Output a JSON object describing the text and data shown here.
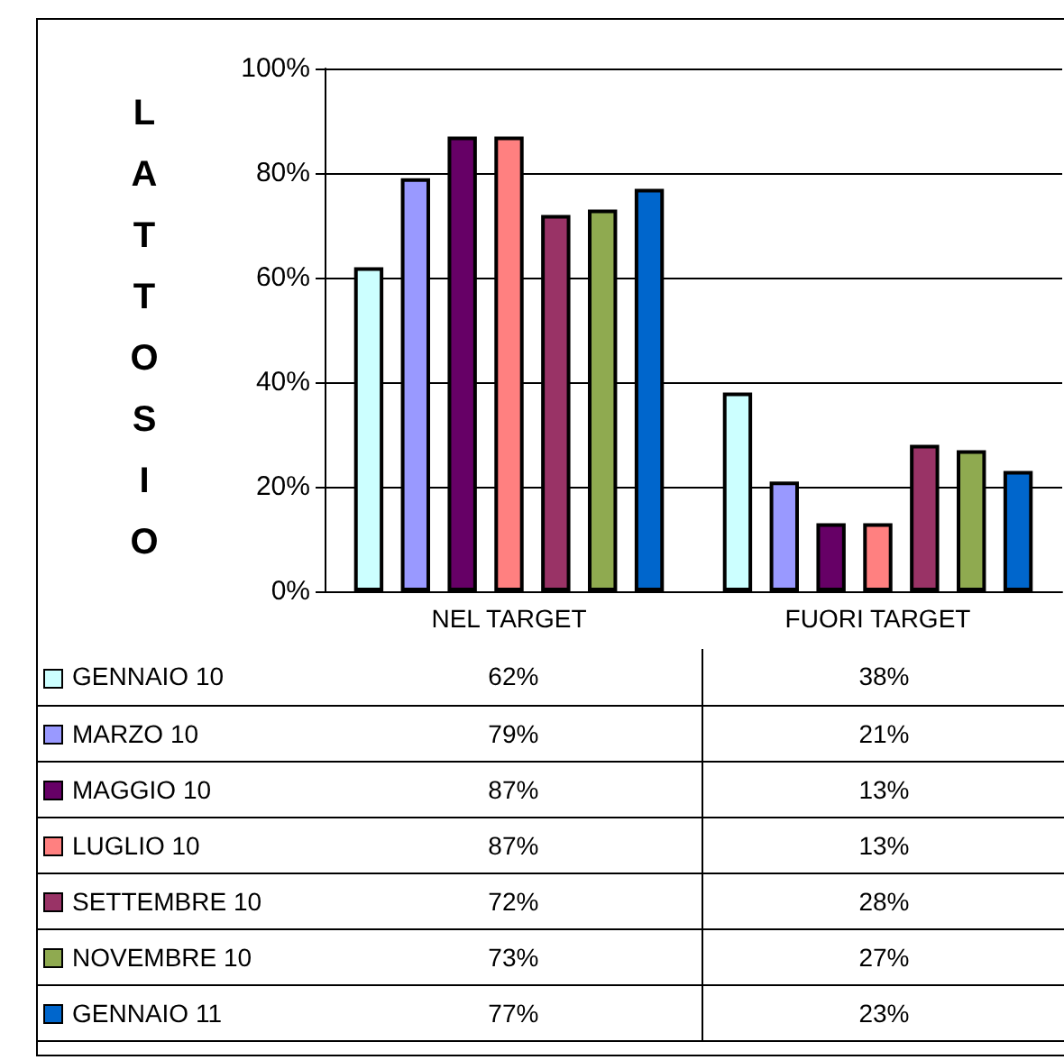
{
  "chart_data": {
    "type": "bar",
    "ylabel": "LATTOSIO",
    "categories": [
      "NEL TARGET",
      "FUORI TARGET"
    ],
    "series": [
      {
        "name": "GENNAIO 10",
        "color": "#ccffff",
        "values": [
          62,
          38
        ],
        "value_labels": [
          "62%",
          "38%"
        ]
      },
      {
        "name": "MARZO 10",
        "color": "#9999ff",
        "values": [
          79,
          21
        ],
        "value_labels": [
          "79%",
          "21%"
        ]
      },
      {
        "name": "MAGGIO 10",
        "color": "#660066",
        "values": [
          87,
          13
        ],
        "value_labels": [
          "87%",
          "13%"
        ]
      },
      {
        "name": "LUGLIO 10",
        "color": "#ff8080",
        "values": [
          87,
          13
        ],
        "value_labels": [
          "87%",
          "13%"
        ]
      },
      {
        "name": "SETTEMBRE 10",
        "color": "#993366",
        "values": [
          72,
          28
        ],
        "value_labels": [
          "72%",
          "28%"
        ]
      },
      {
        "name": "NOVEMBRE 10",
        "color": "#8faa50",
        "values": [
          73,
          27
        ],
        "value_labels": [
          "73%",
          "27%"
        ]
      },
      {
        "name": "GENNAIO 11",
        "color": "#0066cc",
        "values": [
          77,
          23
        ],
        "value_labels": [
          "77%",
          "23%"
        ]
      }
    ],
    "ylim": [
      0,
      100
    ],
    "yticks": [
      {
        "value": 0,
        "label": "0%"
      },
      {
        "value": 20,
        "label": "20%"
      },
      {
        "value": 40,
        "label": "40%"
      },
      {
        "value": 60,
        "label": "60%"
      },
      {
        "value": 80,
        "label": "80%"
      },
      {
        "value": 100,
        "label": "100%"
      }
    ],
    "grid": "y",
    "legend": "bottom"
  }
}
